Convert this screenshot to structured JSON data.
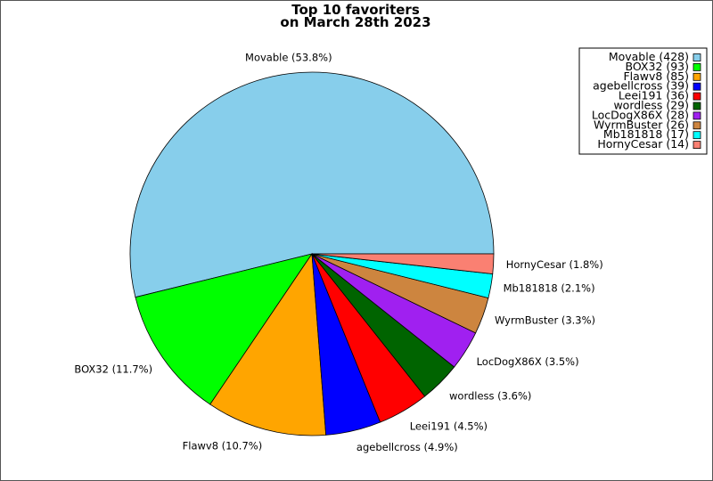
{
  "chart_data": {
    "type": "pie",
    "title": [
      "Top 10 favoriters",
      "on March 28th 2023"
    ],
    "legend_position": "top-right",
    "start_angle_deg": 0,
    "direction": "counterclockwise",
    "slices": [
      {
        "name": "Movable",
        "value": 428,
        "percent_label": "53.8%",
        "color": "#87ceeb"
      },
      {
        "name": "BOX32",
        "value": 93,
        "percent_label": "11.7%",
        "color": "#00ff00"
      },
      {
        "name": "Flawv8",
        "value": 85,
        "percent_label": "10.7%",
        "color": "#ffa500"
      },
      {
        "name": "agebellcross",
        "value": 39,
        "percent_label": "4.9%",
        "color": "#0000ff"
      },
      {
        "name": "Leei191",
        "value": 36,
        "percent_label": "4.5%",
        "color": "#ff0000"
      },
      {
        "name": "wordless",
        "value": 29,
        "percent_label": "3.6%",
        "color": "#006400"
      },
      {
        "name": "LocDogX86X",
        "value": 28,
        "percent_label": "3.5%",
        "color": "#a020f0"
      },
      {
        "name": "WyrmBuster",
        "value": 26,
        "percent_label": "3.3%",
        "color": "#cd853f"
      },
      {
        "name": "Mb181818",
        "value": 17,
        "percent_label": "2.1%",
        "color": "#00ffff"
      },
      {
        "name": "HornyCesar",
        "value": 14,
        "percent_label": "1.8%",
        "color": "#fa8072"
      }
    ]
  }
}
